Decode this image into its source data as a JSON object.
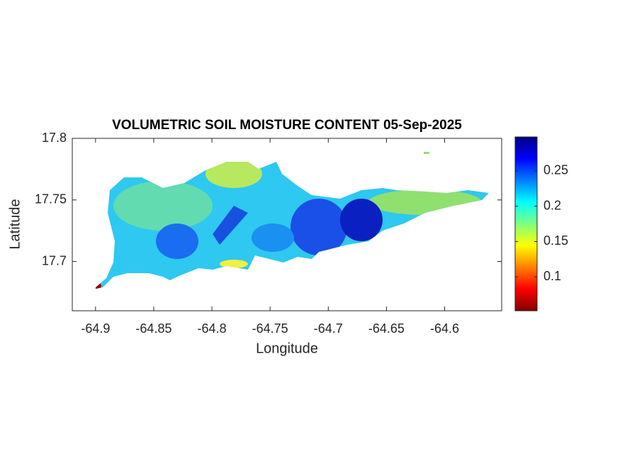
{
  "chart_data": {
    "type": "heatmap",
    "title": "VOLUMETRIC SOIL MOISTURE CONTENT 05-Sep-2025",
    "xlabel": "Longitude",
    "ylabel": "Latitude",
    "xlim": [
      -64.92,
      -64.551
    ],
    "ylim": [
      17.66,
      17.8
    ],
    "xticks": [
      -64.9,
      -64.85,
      -64.8,
      -64.75,
      -64.7,
      -64.65,
      -64.6
    ],
    "yticks": [
      17.7,
      17.75,
      17.8
    ],
    "colorbar": {
      "colormap": "jet",
      "clim": [
        0.052,
        0.298
      ],
      "ticks": [
        0.1,
        0.15,
        0.2,
        0.25
      ]
    }
  }
}
